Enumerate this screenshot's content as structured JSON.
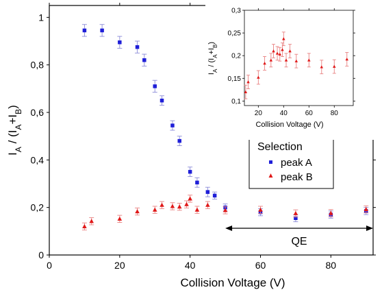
{
  "chart_data": [
    {
      "type": "scatter",
      "xlabel": "Collision Voltage (V)",
      "ylabel": {
        "base": "I",
        "sub1": "A",
        "mid": " / (I",
        "sub2": "A",
        "plus": "+I",
        "sub3": "B",
        "end": ")"
      },
      "xlim": [
        0,
        92
      ],
      "ylim": [
        0,
        1.05
      ],
      "xticks": [
        0,
        20,
        40,
        60,
        80
      ],
      "xtick_labels": [
        "0",
        "20",
        "40",
        "60",
        "80"
      ],
      "yticks": [
        0,
        0.2,
        0.4,
        0.6,
        0.8,
        1
      ],
      "ytick_labels": [
        "0",
        "0,2",
        "0,4",
        "0,6",
        "0,8",
        "1"
      ],
      "grid": false,
      "legend": {
        "title": "Selection",
        "placement": "center-right"
      },
      "annotation": {
        "text": "QE",
        "arrow_from_x": 50,
        "arrow_to_x": 92
      },
      "series": [
        {
          "name": "peak A",
          "marker": "square",
          "color": "#1f1fd8",
          "points": [
            {
              "x": 10,
              "y": 0.945,
              "err": 0.025
            },
            {
              "x": 15,
              "y": 0.945,
              "err": 0.025
            },
            {
              "x": 20,
              "y": 0.895,
              "err": 0.025
            },
            {
              "x": 25,
              "y": 0.875,
              "err": 0.025
            },
            {
              "x": 27,
              "y": 0.82,
              "err": 0.025
            },
            {
              "x": 30,
              "y": 0.71,
              "err": 0.025
            },
            {
              "x": 32,
              "y": 0.65,
              "err": 0.02
            },
            {
              "x": 35,
              "y": 0.545,
              "err": 0.02
            },
            {
              "x": 37,
              "y": 0.48,
              "err": 0.02
            },
            {
              "x": 40,
              "y": 0.35,
              "err": 0.02
            },
            {
              "x": 42,
              "y": 0.305,
              "err": 0.02
            },
            {
              "x": 45,
              "y": 0.265,
              "err": 0.02
            },
            {
              "x": 47,
              "y": 0.25,
              "err": 0.015
            },
            {
              "x": 50,
              "y": 0.2,
              "err": 0.015
            },
            {
              "x": 60,
              "y": 0.18,
              "err": 0.015
            },
            {
              "x": 70,
              "y": 0.155,
              "err": 0.015
            },
            {
              "x": 80,
              "y": 0.17,
              "err": 0.015
            },
            {
              "x": 90,
              "y": 0.185,
              "err": 0.015
            }
          ]
        },
        {
          "name": "peak B",
          "marker": "triangle",
          "color": "#e01818",
          "points": [
            {
              "x": 10,
              "y": 0.12,
              "err": 0.015
            },
            {
              "x": 12,
              "y": 0.142,
              "err": 0.015
            },
            {
              "x": 20,
              "y": 0.152,
              "err": 0.015
            },
            {
              "x": 25,
              "y": 0.183,
              "err": 0.015
            },
            {
              "x": 30,
              "y": 0.19,
              "err": 0.015
            },
            {
              "x": 32,
              "y": 0.21,
              "err": 0.015
            },
            {
              "x": 35,
              "y": 0.205,
              "err": 0.015
            },
            {
              "x": 37,
              "y": 0.203,
              "err": 0.015
            },
            {
              "x": 39,
              "y": 0.213,
              "err": 0.015
            },
            {
              "x": 40,
              "y": 0.237,
              "err": 0.015
            },
            {
              "x": 42,
              "y": 0.19,
              "err": 0.015
            },
            {
              "x": 45,
              "y": 0.21,
              "err": 0.015
            },
            {
              "x": 50,
              "y": 0.188,
              "err": 0.015
            },
            {
              "x": 60,
              "y": 0.19,
              "err": 0.015
            },
            {
              "x": 70,
              "y": 0.175,
              "err": 0.015
            },
            {
              "x": 80,
              "y": 0.176,
              "err": 0.015
            },
            {
              "x": 90,
              "y": 0.192,
              "err": 0.015
            }
          ]
        }
      ]
    },
    {
      "type": "scatter",
      "xlabel": "Collision Voltage (V)",
      "ylabel": {
        "base": "I",
        "sub1": "A",
        "mid": " / (I",
        "sub2": "A",
        "plus": "+I",
        "sub3": "B",
        "end": ")"
      },
      "xlim": [
        9,
        95
      ],
      "ylim": [
        0.09,
        0.3
      ],
      "xticks": [
        20,
        40,
        60,
        80
      ],
      "xtick_labels": [
        "20",
        "40",
        "60",
        "80"
      ],
      "yticks": [
        0.1,
        0.15,
        0.2,
        0.25,
        0.3
      ],
      "ytick_labels": [
        "0,1",
        "0,15",
        "0,2",
        "0,25",
        "0,3"
      ],
      "grid": false,
      "series": [
        {
          "marker": "triangle",
          "color": "#e01818",
          "points": [
            {
              "x": 10,
              "y": 0.12,
              "err": 0.015
            },
            {
              "x": 12,
              "y": 0.142,
              "err": 0.015
            },
            {
              "x": 20,
              "y": 0.152,
              "err": 0.015
            },
            {
              "x": 25,
              "y": 0.183,
              "err": 0.015
            },
            {
              "x": 30,
              "y": 0.19,
              "err": 0.015
            },
            {
              "x": 32,
              "y": 0.21,
              "err": 0.015
            },
            {
              "x": 35,
              "y": 0.205,
              "err": 0.015
            },
            {
              "x": 37,
              "y": 0.203,
              "err": 0.015
            },
            {
              "x": 39,
              "y": 0.213,
              "err": 0.015
            },
            {
              "x": 40,
              "y": 0.237,
              "err": 0.015
            },
            {
              "x": 42,
              "y": 0.19,
              "err": 0.015
            },
            {
              "x": 45,
              "y": 0.21,
              "err": 0.015
            },
            {
              "x": 50,
              "y": 0.188,
              "err": 0.015
            },
            {
              "x": 60,
              "y": 0.19,
              "err": 0.015
            },
            {
              "x": 70,
              "y": 0.175,
              "err": 0.015
            },
            {
              "x": 80,
              "y": 0.176,
              "err": 0.015
            },
            {
              "x": 90,
              "y": 0.192,
              "err": 0.015
            }
          ]
        }
      ]
    }
  ]
}
